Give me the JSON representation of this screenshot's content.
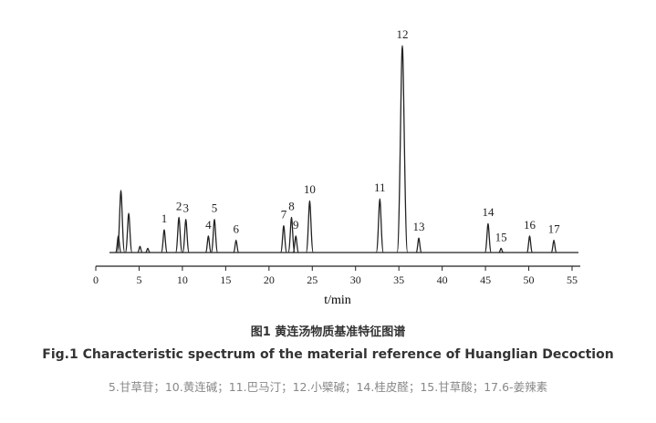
{
  "chart_data": {
    "type": "chromatogram",
    "x_label": "t/min",
    "xlim": [
      0,
      55
    ],
    "xticks": [
      0,
      5,
      10,
      15,
      20,
      25,
      30,
      35,
      40,
      45,
      50,
      55
    ],
    "ylim": [
      0,
      100
    ],
    "color": "#222222",
    "peaks": [
      {
        "label": null,
        "x": 2.6,
        "height": 8
      },
      {
        "label": null,
        "x": 2.9,
        "height": 30
      },
      {
        "label": null,
        "x": 3.8,
        "height": 19
      },
      {
        "label": null,
        "x": 5.1,
        "height": 3
      },
      {
        "label": null,
        "x": 6.0,
        "height": 2
      },
      {
        "label": "1",
        "x": 7.9,
        "height": 11
      },
      {
        "label": "2",
        "x": 9.6,
        "height": 17
      },
      {
        "label": "3",
        "x": 10.4,
        "height": 16
      },
      {
        "label": "4",
        "x": 13.0,
        "height": 8
      },
      {
        "label": "5",
        "x": 13.7,
        "height": 16
      },
      {
        "label": "6",
        "x": 16.2,
        "height": 6
      },
      {
        "label": "7",
        "x": 21.7,
        "height": 13
      },
      {
        "label": "8",
        "x": 22.6,
        "height": 17
      },
      {
        "label": "9",
        "x": 23.1,
        "height": 8
      },
      {
        "label": "10",
        "x": 24.7,
        "height": 25
      },
      {
        "label": "11",
        "x": 32.8,
        "height": 26
      },
      {
        "label": "12",
        "x": 35.4,
        "height": 100
      },
      {
        "label": "13",
        "x": 37.3,
        "height": 7
      },
      {
        "label": "14",
        "x": 45.3,
        "height": 14
      },
      {
        "label": "15",
        "x": 46.8,
        "height": 2
      },
      {
        "label": "16",
        "x": 50.1,
        "height": 8
      },
      {
        "label": "17",
        "x": 52.9,
        "height": 6
      }
    ]
  },
  "caption": {
    "title_cn": "图1 黄连汤物质基准特征图谱",
    "title_en": "Fig.1 Characteristic spectrum of the material reference of Huanglian Decoction",
    "note": "5.甘草苷；10.黄连碱；11.巴马汀；12.小檗碱；14.桂皮醛；15.甘草酸；17.6-姜辣素"
  }
}
